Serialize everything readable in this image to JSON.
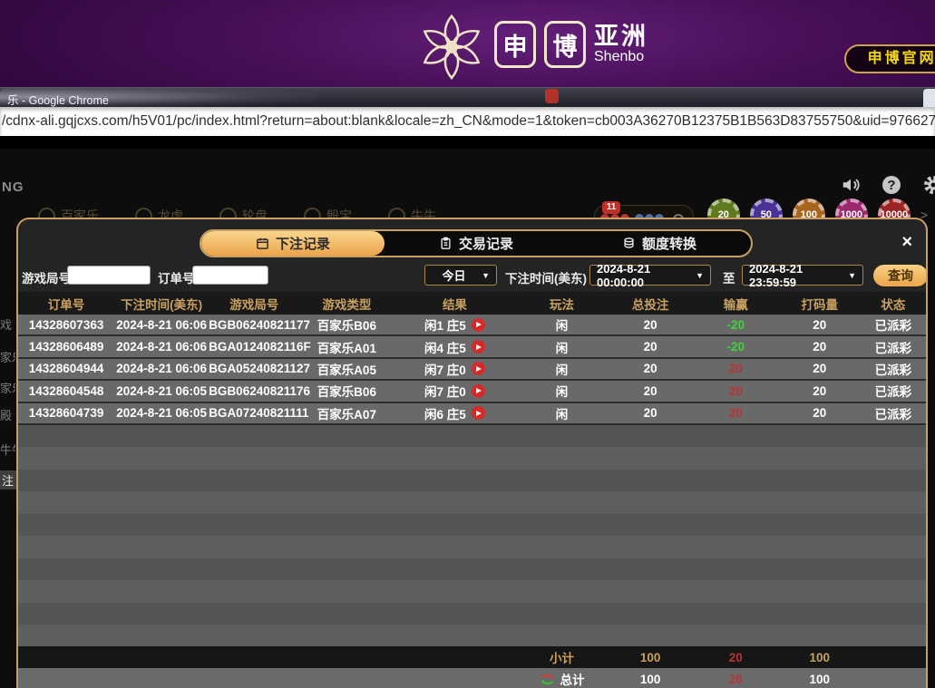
{
  "browser": {
    "window_title": "乐 - Google Chrome",
    "url": "/cdnx-ali.gqjcxs.com/h5V01/pc/index.html?return=about:blank&locale=zh_CN&mode=1&token=cb003A36270B12375B1B563D83755750&uid=97662746"
  },
  "site_header": {
    "brand_char_1": "申",
    "brand_char_2": "博",
    "brand_name_cn": "亚洲",
    "brand_name_en": "Shenbo",
    "official_site_button": "申博官网:"
  },
  "game_chrome": {
    "logo_partial": "NG",
    "nav_items": [
      "百家乐",
      "龙虎",
      "轮盘",
      "骰宝",
      "牛牛"
    ],
    "notice_badge": "11",
    "chips": [
      "20",
      "50",
      "100",
      "1000",
      "10000"
    ],
    "chip_arrow": ">"
  },
  "sidebar_partial": [
    "戏",
    "家乐",
    "家乐",
    "殿",
    "牛牛",
    "注"
  ],
  "modal": {
    "close_label": "×",
    "tabs": [
      {
        "label": "下注记录",
        "icon": "calendar-icon",
        "active": true
      },
      {
        "label": "交易记录",
        "icon": "clipboard-icon",
        "active": false
      },
      {
        "label": "额度转换",
        "icon": "coins-icon",
        "active": false
      }
    ],
    "filters": {
      "game_round_label": "游戏局号",
      "order_no_label": "订单号",
      "quick_range_value": "今日",
      "bet_time_label": "下注时间(美东)",
      "date_from": "2024-8-21 00:00:00",
      "to_label": "至",
      "date_to": "2024-8-21 23:59:59",
      "search_button": "查询",
      "dropdown_arrow": "▼"
    },
    "table": {
      "headers": [
        "订单号",
        "下注时间(美东)",
        "游戏局号",
        "游戏类型",
        "结果",
        "玩法",
        "总投注",
        "输赢",
        "打码量",
        "状态"
      ],
      "rows": [
        {
          "order_no": "14328607363",
          "bet_time": "2024-8-21 06:06",
          "round_no": "BGB06240821177",
          "game_type": "百家乐B06",
          "result": "闲1 庄5",
          "play": "闲",
          "total_bet": "20",
          "win_loss": "-20",
          "turnover": "20",
          "status": "已派彩"
        },
        {
          "order_no": "14328606489",
          "bet_time": "2024-8-21 06:06",
          "round_no": "BGA0124082116F",
          "game_type": "百家乐A01",
          "result": "闲4 庄5",
          "play": "闲",
          "total_bet": "20",
          "win_loss": "-20",
          "turnover": "20",
          "status": "已派彩"
        },
        {
          "order_no": "14328604944",
          "bet_time": "2024-8-21 06:06",
          "round_no": "BGA05240821127",
          "game_type": "百家乐A05",
          "result": "闲7 庄0",
          "play": "闲",
          "total_bet": "20",
          "win_loss": "20",
          "turnover": "20",
          "status": "已派彩"
        },
        {
          "order_no": "14328604548",
          "bet_time": "2024-8-21 06:05",
          "round_no": "BGB06240821176",
          "game_type": "百家乐B06",
          "result": "闲7 庄0",
          "play": "闲",
          "total_bet": "20",
          "win_loss": "20",
          "turnover": "20",
          "status": "已派彩"
        },
        {
          "order_no": "14328604739",
          "bet_time": "2024-8-21 06:05",
          "round_no": "BGA07240821111",
          "game_type": "百家乐A07",
          "result": "闲6 庄5",
          "play": "闲",
          "total_bet": "20",
          "win_loss": "20",
          "turnover": "20",
          "status": "已派彩"
        }
      ],
      "subtotal": {
        "label": "小计",
        "total_bet": "100",
        "win_loss": "20",
        "turnover": "100"
      },
      "total": {
        "label": "总计",
        "total_bet": "100",
        "win_loss": "20",
        "turnover": "100"
      }
    }
  },
  "colors": {
    "accent_gold": "#c9a063",
    "tab_active_top": "#f8d58e",
    "tab_active_bottom": "#eca44a",
    "header_text_gold": "#c8a060",
    "win_red": "#b43535",
    "loss_green": "#3fd23f",
    "official_text_yellow": "#f6d80e",
    "row_gray": "#696969"
  }
}
